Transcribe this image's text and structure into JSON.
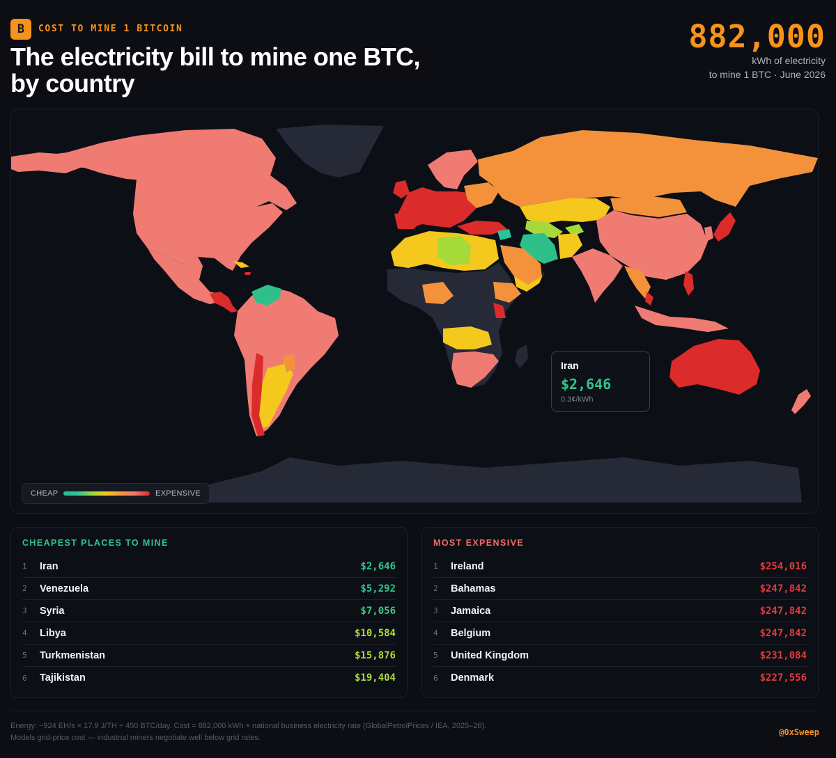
{
  "header": {
    "eyebrow": "COST TO MINE 1 BITCOIN",
    "title_line1": "The electricity bill to mine one BTC,",
    "title_line2": "by country",
    "big_number": "882,000",
    "big_sub_line1": "kWh of electricity",
    "big_sub_line2": "to mine 1 BTC · June 2026",
    "logo_glyph": "B"
  },
  "map": {
    "legend_cheap": "CHEAP",
    "legend_expensive": "EXPENSIVE",
    "tooltip": {
      "country": "Iran",
      "value": "$2,646",
      "rate": "0.3¢/kWh"
    },
    "colors": {
      "cheapest": "#2fbf8a",
      "cheap": "#a6d93a",
      "mid": "#f4c81c",
      "upper_mid": "#f4923c",
      "high": "#f07b73",
      "highest": "#dc2b2b",
      "no_data": "#252a36",
      "ocean": "#0d0f16"
    }
  },
  "cheapest": {
    "title": "CHEAPEST PLACES TO MINE",
    "color": "#2ec68d",
    "rows": [
      {
        "rank": "1",
        "name": "Iran",
        "value": "$2,646",
        "color": "#2ec68d"
      },
      {
        "rank": "2",
        "name": "Venezuela",
        "value": "$5,292",
        "color": "#2ec68d"
      },
      {
        "rank": "3",
        "name": "Syria",
        "value": "$7,056",
        "color": "#3dca84"
      },
      {
        "rank": "4",
        "name": "Libya",
        "value": "$10,584",
        "color": "#a8dc38"
      },
      {
        "rank": "5",
        "name": "Turkmenistan",
        "value": "$15,876",
        "color": "#a8dc38"
      },
      {
        "rank": "6",
        "name": "Tajikistan",
        "value": "$19,404",
        "color": "#a8dc38"
      }
    ]
  },
  "expensive": {
    "title": "MOST EXPENSIVE",
    "color": "#f36a6a",
    "rows": [
      {
        "rank": "1",
        "name": "Ireland",
        "value": "$254,016",
        "color": "#e23a3a"
      },
      {
        "rank": "2",
        "name": "Bahamas",
        "value": "$247,842",
        "color": "#e23a3a"
      },
      {
        "rank": "3",
        "name": "Jamaica",
        "value": "$247,842",
        "color": "#e23a3a"
      },
      {
        "rank": "4",
        "name": "Belgium",
        "value": "$247,842",
        "color": "#e23a3a"
      },
      {
        "rank": "5",
        "name": "United Kingdom",
        "value": "$231,084",
        "color": "#e23a3a"
      },
      {
        "rank": "6",
        "name": "Denmark",
        "value": "$227,556",
        "color": "#e23a3a"
      }
    ]
  },
  "footer": {
    "line1": "Energy: ~924 EH/s × 17.9 J/TH ÷ 450 BTC/day. Cost = 882,000 kWh × national business electricity rate (GlobalPetrolPrices / IEA, 2025–26).",
    "line2": "Models grid-price cost — industrial miners negotiate well below grid rates.",
    "handle": "@0xSweep"
  }
}
